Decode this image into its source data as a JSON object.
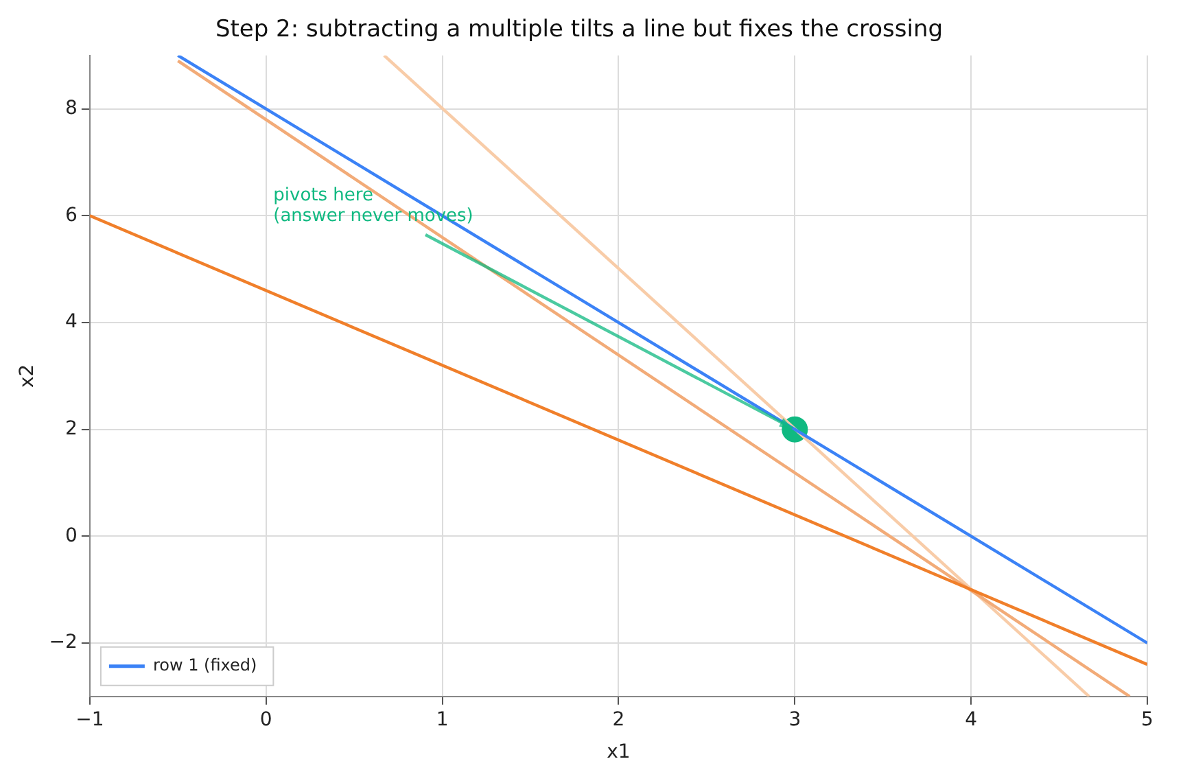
{
  "chart_data": {
    "type": "line",
    "title": "Step 2: subtracting a multiple tilts a line but fixes the crossing",
    "xlabel": "x1",
    "ylabel": "x2",
    "series": [
      {
        "name": "row 1 (fixed)",
        "color": "#3b82f6",
        "x": [
          -0.5,
          5
        ],
        "values": [
          9,
          -2
        ]
      },
      {
        "color": "#f07f2a",
        "x": [
          -1,
          5
        ],
        "values": [
          6,
          -2.4
        ]
      },
      {
        "color": "#f2ab78",
        "x": [
          -0.5,
          4.9
        ],
        "values": [
          8.9,
          -3
        ]
      },
      {
        "color": "#f8cca8",
        "x": [
          0.67,
          4.67
        ],
        "values": [
          9,
          -3
        ]
      },
      {
        "type": "scatter",
        "color": "#10b981",
        "x": [
          3
        ],
        "values": [
          2
        ]
      }
    ],
    "annotations": [
      {
        "text": "pivots here\n(answer never moves)",
        "x": 3,
        "y": 2
      }
    ],
    "xlim": [
      -1,
      5
    ],
    "xticks": [
      -1,
      0,
      1,
      2,
      3,
      4,
      5
    ],
    "ylim": [
      -3,
      9
    ],
    "yticks": [
      -2,
      0,
      2,
      4,
      6,
      8
    ],
    "grid": true,
    "legend": "bottom left"
  }
}
